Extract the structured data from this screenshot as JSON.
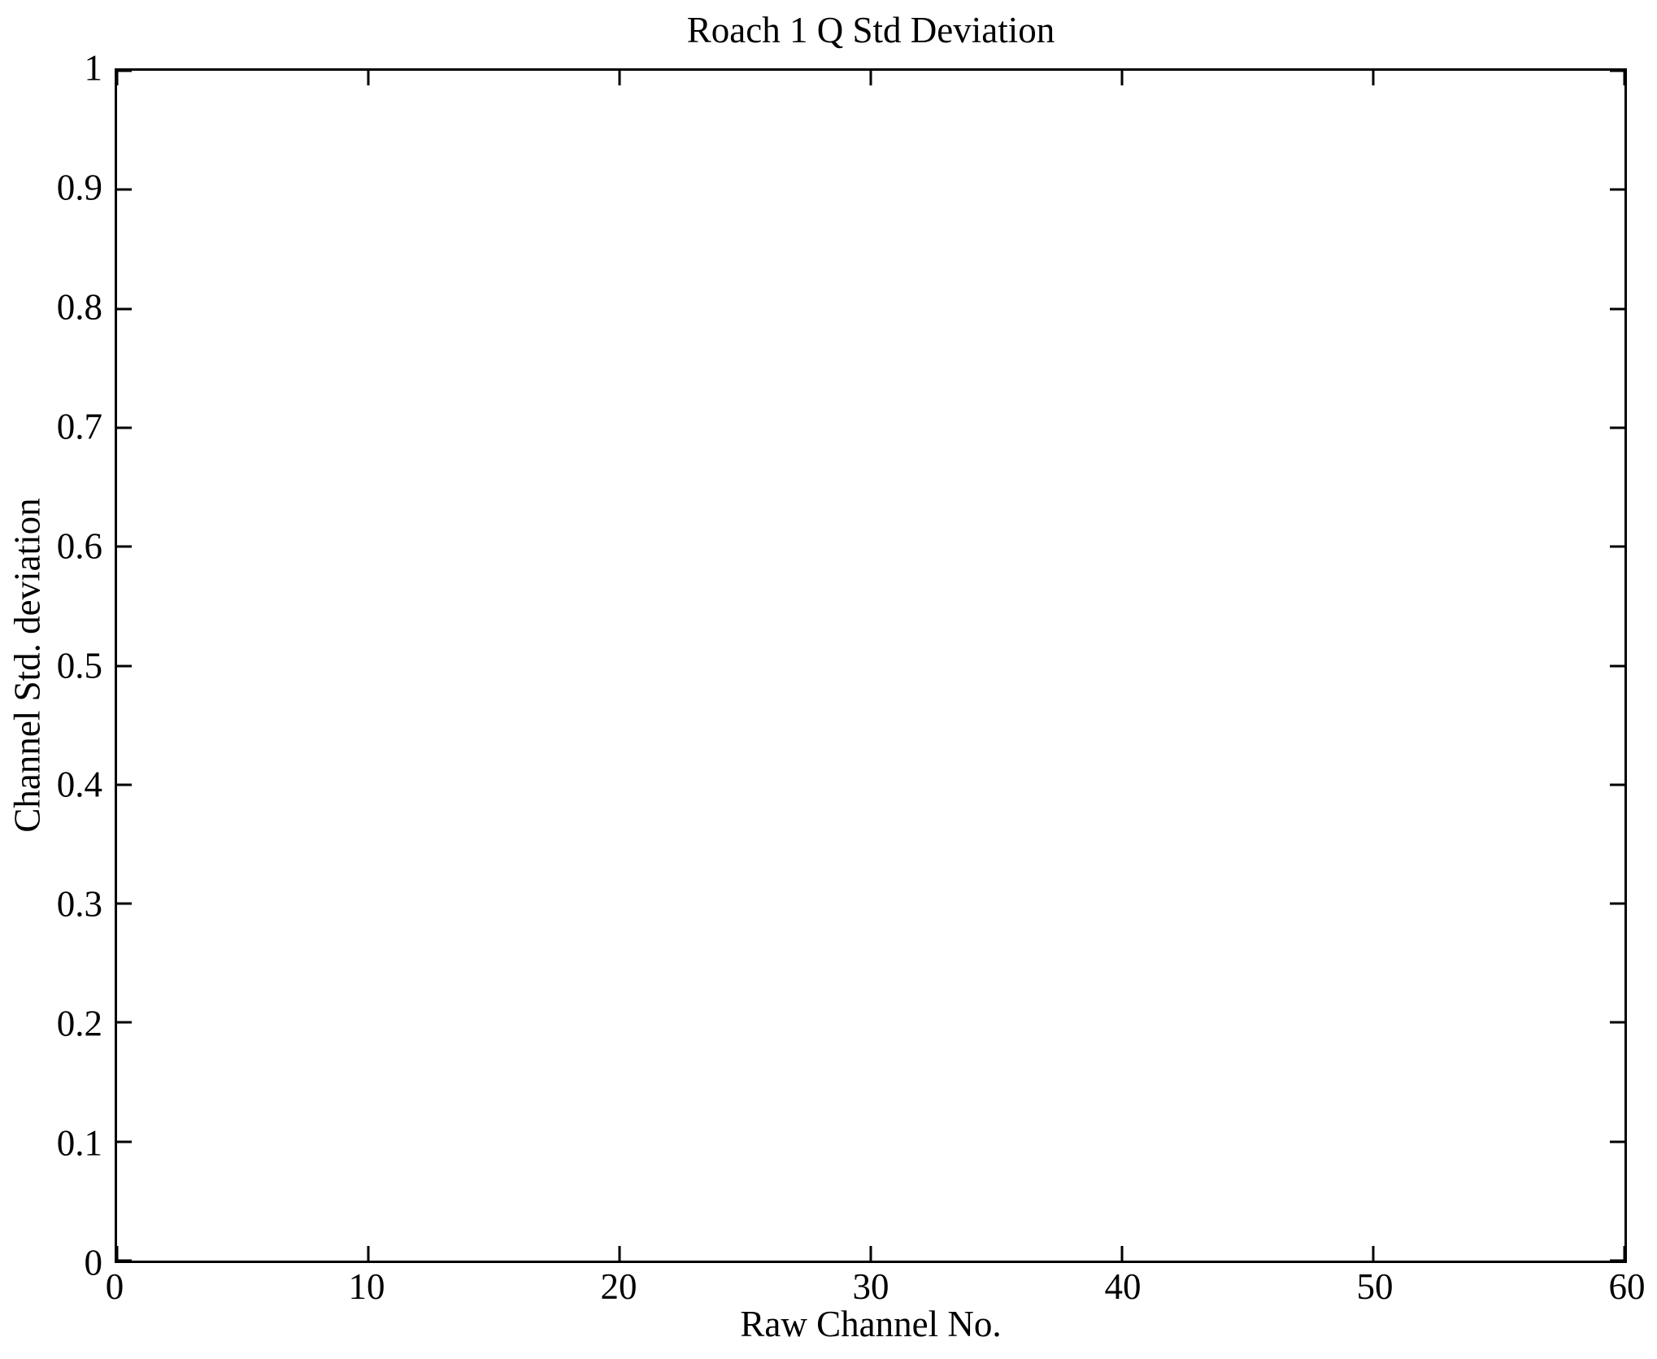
{
  "chart_data": {
    "type": "line",
    "title": "Roach 1 Q Std Deviation",
    "xlabel": "Raw Channel No.",
    "ylabel": "Channel Std. deviation",
    "xlim": [
      0,
      60
    ],
    "ylim": [
      0,
      1
    ],
    "xtick_values": [
      0,
      10,
      20,
      30,
      40,
      50,
      60
    ],
    "xtick_labels": [
      "0",
      "10",
      "20",
      "30",
      "40",
      "50",
      "60"
    ],
    "ytick_values": [
      0,
      0.1,
      0.2,
      0.3,
      0.4,
      0.5,
      0.6,
      0.7,
      0.8,
      0.9,
      1
    ],
    "ytick_labels": [
      "0",
      "0.1",
      "0.2",
      "0.3",
      "0.4",
      "0.5",
      "0.6",
      "0.7",
      "0.8",
      "0.9",
      "1"
    ],
    "series": [],
    "grid": false,
    "tick_direction": "in",
    "box": true,
    "axes_color": "#000000",
    "background_color": "#ffffff"
  }
}
